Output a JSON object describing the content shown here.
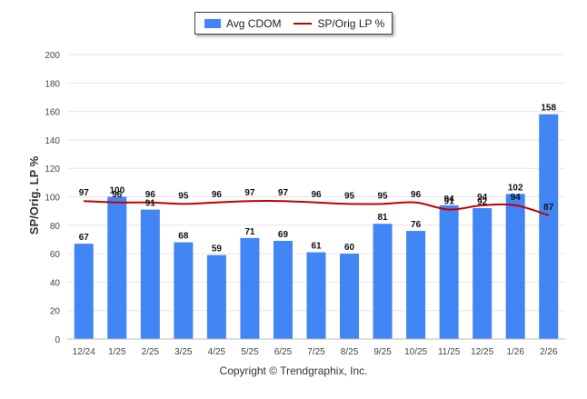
{
  "chart_data": {
    "type": "bar",
    "ylabel": "SP/Orig. LP %",
    "xlabel": "",
    "ylim": [
      0,
      200
    ],
    "yticks": [
      0,
      20,
      40,
      60,
      80,
      100,
      120,
      140,
      160,
      180,
      200
    ],
    "categories": [
      "12/24",
      "1/25",
      "2/25",
      "3/25",
      "4/25",
      "5/25",
      "6/25",
      "7/25",
      "8/25",
      "9/25",
      "10/25",
      "11/25",
      "12/25",
      "1/26",
      "2/26"
    ],
    "series": [
      {
        "name": "Avg CDOM",
        "type": "bar",
        "color": "#4285f4",
        "values": [
          67,
          100,
          91,
          68,
          59,
          71,
          69,
          61,
          60,
          81,
          76,
          94,
          92,
          102,
          158
        ]
      },
      {
        "name": "SP/Orig LP %",
        "type": "line",
        "color": "#c00000",
        "values": [
          97,
          96,
          96,
          95,
          96,
          97,
          97,
          96,
          95,
          95,
          96,
          91,
          94,
          94,
          87
        ]
      }
    ],
    "grid": true,
    "legend": "top-center"
  },
  "legend": {
    "bar_label": "Avg CDOM",
    "line_label": "SP/Orig LP %"
  },
  "footer": {
    "copyright": "Copyright © Trendgraphix, Inc."
  }
}
